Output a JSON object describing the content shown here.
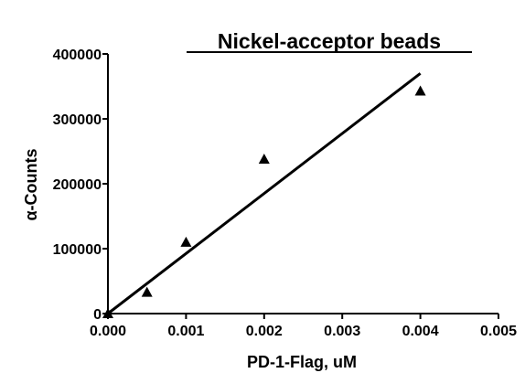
{
  "chart_data": {
    "type": "scatter",
    "title": "Nickel-acceptor beads",
    "xlabel": "PD-1-Flag, uM",
    "ylabel": "α-Counts",
    "xlim": [
      0,
      0.005
    ],
    "ylim": [
      0,
      400000
    ],
    "x_ticks": [
      0,
      0.001,
      0.002,
      0.003,
      0.004,
      0.005
    ],
    "x_tick_labels": [
      "0.000",
      "0.001",
      "0.002",
      "0.003",
      "0.004",
      "0.005"
    ],
    "y_ticks": [
      0,
      100000,
      200000,
      300000,
      400000
    ],
    "y_tick_labels": [
      "0",
      "100000",
      "200000",
      "300000",
      "400000"
    ],
    "grid": false,
    "series": [
      {
        "marker": "triangle",
        "color": "#000000",
        "points": [
          {
            "x": 0,
            "y": 0
          },
          {
            "x": 0.0005,
            "y": 33000
          },
          {
            "x": 0.001,
            "y": 110000
          },
          {
            "x": 0.002,
            "y": 238000
          },
          {
            "x": 0.004,
            "y": 343000
          }
        ]
      }
    ],
    "fit_line": {
      "x": [
        0,
        0.004
      ],
      "y": [
        0,
        370000
      ],
      "color": "#000000"
    }
  }
}
